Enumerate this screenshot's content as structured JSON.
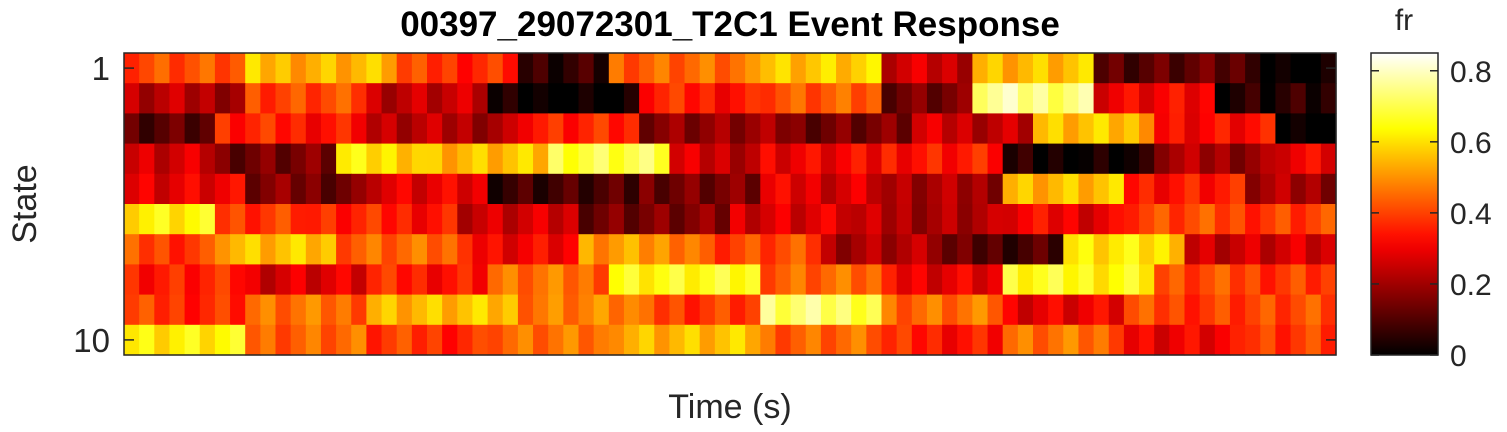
{
  "chart_data": {
    "type": "heatmap",
    "title": "00397_29072301_T2C1 Event Response",
    "xlabel": "Time (s)",
    "ylabel": "State",
    "y_tick_labels": [
      "1",
      "10"
    ],
    "colormap": "hot",
    "colorbar": {
      "label": "fr",
      "range": [
        0,
        0.85
      ],
      "ticks": [
        0,
        0.2,
        0.4,
        0.6,
        0.8
      ],
      "tick_labels": [
        "0",
        "0.2",
        "0.4",
        "0.6",
        "0.8"
      ]
    },
    "rows": [
      {
        "state": 1,
        "segments": [
          [
            8,
            0.42
          ],
          [
            10,
            0.55
          ],
          [
            8,
            0.38
          ],
          [
            6,
            0.05
          ],
          [
            10,
            0.45
          ],
          [
            8,
            0.58
          ],
          [
            6,
            0.25
          ],
          [
            8,
            0.55
          ],
          [
            10,
            0.12
          ],
          [
            6,
            0.0
          ]
        ]
      },
      {
        "state": 2,
        "segments": [
          [
            8,
            0.22
          ],
          [
            8,
            0.4
          ],
          [
            8,
            0.25
          ],
          [
            10,
            0.0
          ],
          [
            8,
            0.35
          ],
          [
            8,
            0.42
          ],
          [
            6,
            0.15
          ],
          [
            8,
            0.75
          ],
          [
            8,
            0.3
          ],
          [
            8,
            0.05
          ],
          [
            6,
            0.72
          ]
        ]
      },
      {
        "state": 3,
        "segments": [
          [
            6,
            0.12
          ],
          [
            10,
            0.35
          ],
          [
            10,
            0.22
          ],
          [
            8,
            0.35
          ],
          [
            10,
            0.18
          ],
          [
            8,
            0.15
          ],
          [
            8,
            0.25
          ],
          [
            8,
            0.55
          ],
          [
            8,
            0.32
          ],
          [
            4,
            0.0
          ]
        ]
      },
      {
        "state": 4,
        "segments": [
          [
            6,
            0.25
          ],
          [
            8,
            0.15
          ],
          [
            6,
            0.6
          ],
          [
            8,
            0.55
          ],
          [
            8,
            0.7
          ],
          [
            6,
            0.25
          ],
          [
            8,
            0.3
          ],
          [
            8,
            0.35
          ],
          [
            10,
            0.02
          ],
          [
            8,
            0.2
          ],
          [
            4,
            0.3
          ]
        ]
      },
      {
        "state": 5,
        "segments": [
          [
            8,
            0.3
          ],
          [
            8,
            0.15
          ],
          [
            8,
            0.28
          ],
          [
            10,
            0.08
          ],
          [
            8,
            0.15
          ],
          [
            8,
            0.28
          ],
          [
            8,
            0.2
          ],
          [
            8,
            0.55
          ],
          [
            8,
            0.35
          ],
          [
            6,
            0.2
          ]
        ]
      },
      {
        "state": 6,
        "segments": [
          [
            6,
            0.62
          ],
          [
            6,
            0.4
          ],
          [
            10,
            0.35
          ],
          [
            8,
            0.25
          ],
          [
            10,
            0.15
          ],
          [
            8,
            0.28
          ],
          [
            10,
            0.22
          ],
          [
            8,
            0.3
          ],
          [
            6,
            0.4
          ]
        ]
      },
      {
        "state": 7,
        "segments": [
          [
            6,
            0.4
          ],
          [
            8,
            0.55
          ],
          [
            8,
            0.45
          ],
          [
            8,
            0.32
          ],
          [
            8,
            0.5
          ],
          [
            8,
            0.4
          ],
          [
            8,
            0.22
          ],
          [
            8,
            0.1
          ],
          [
            8,
            0.6
          ],
          [
            6,
            0.25
          ]
        ]
      },
      {
        "state": 8,
        "segments": [
          [
            8,
            0.35
          ],
          [
            8,
            0.28
          ],
          [
            8,
            0.35
          ],
          [
            8,
            0.45
          ],
          [
            10,
            0.65
          ],
          [
            8,
            0.45
          ],
          [
            8,
            0.3
          ],
          [
            10,
            0.65
          ],
          [
            6,
            0.4
          ]
        ]
      },
      {
        "state": 9,
        "segments": [
          [
            8,
            0.38
          ],
          [
            8,
            0.45
          ],
          [
            10,
            0.55
          ],
          [
            8,
            0.48
          ],
          [
            8,
            0.4
          ],
          [
            8,
            0.72
          ],
          [
            8,
            0.45
          ],
          [
            8,
            0.3
          ],
          [
            6,
            0.4
          ]
        ]
      },
      {
        "state": 10,
        "segments": [
          [
            8,
            0.62
          ],
          [
            8,
            0.45
          ],
          [
            8,
            0.38
          ],
          [
            8,
            0.45
          ],
          [
            10,
            0.55
          ],
          [
            8,
            0.45
          ],
          [
            8,
            0.35
          ],
          [
            8,
            0.45
          ],
          [
            8,
            0.3
          ],
          [
            6,
            0.4
          ]
        ]
      }
    ]
  }
}
